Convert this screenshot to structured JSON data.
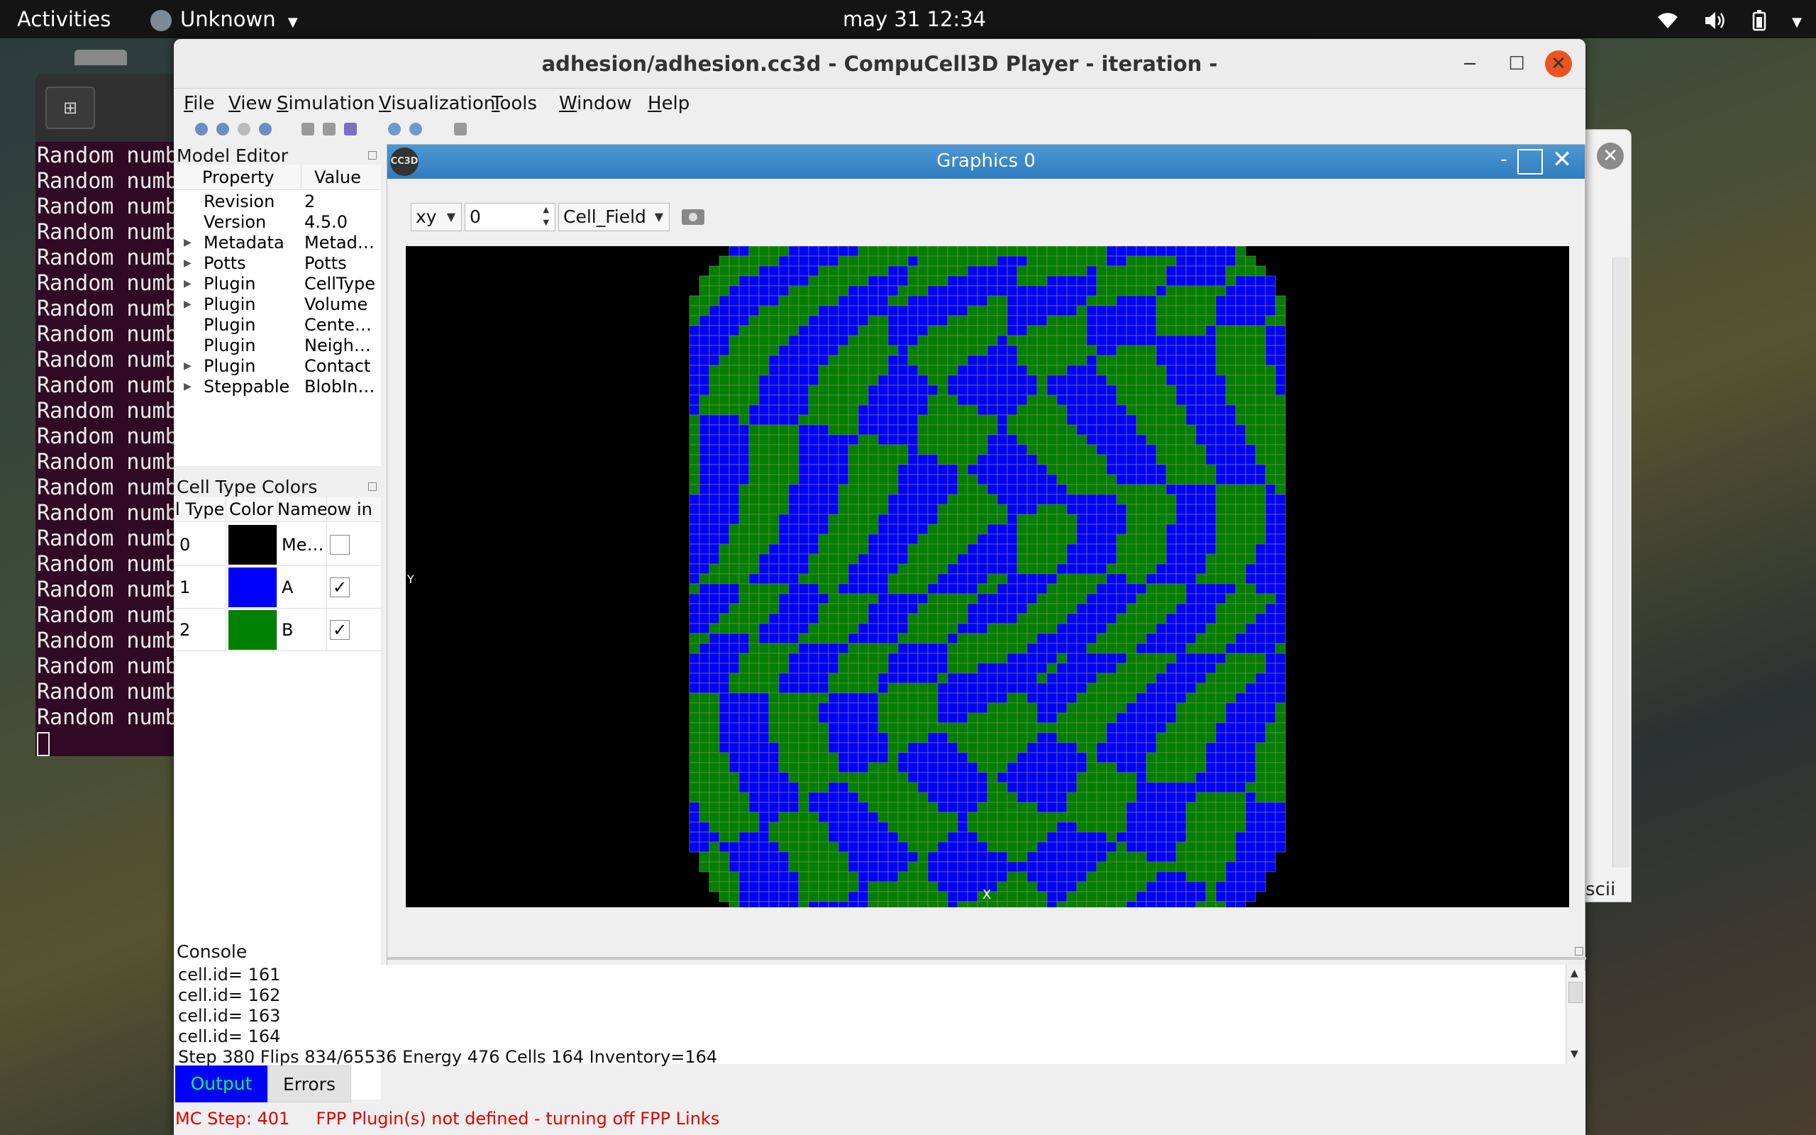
{
  "topbar": {
    "activities": "Activities",
    "app_menu": "Unknown",
    "clock": "may 31  12:34"
  },
  "terminal": {
    "line_text": "Random numb",
    "line_count": 23
  },
  "background_window": {
    "close_glyph": "✕",
    "bottom_text": "scii"
  },
  "window": {
    "title": "adhesion/adhesion.cc3d - CompuCell3D Player - iteration -",
    "menu": [
      "File",
      "View",
      "Simulation",
      "Visualization",
      "Tools",
      "Window",
      "Help"
    ],
    "menu_accel": [
      "F",
      "V",
      "S",
      "V",
      "T",
      "W",
      "H"
    ]
  },
  "model_editor": {
    "title": "Model Editor",
    "col_property": "Property",
    "col_value": "Value",
    "rows": [
      {
        "property": "Revision",
        "value": "2",
        "expandable": false
      },
      {
        "property": "Version",
        "value": "4.5.0",
        "expandable": false
      },
      {
        "property": "Metadata",
        "value": "Metad…",
        "expandable": true
      },
      {
        "property": "Potts",
        "value": "Potts",
        "expandable": true
      },
      {
        "property": "Plugin",
        "value": "CellType",
        "expandable": true
      },
      {
        "property": "Plugin",
        "value": "Volume",
        "expandable": true
      },
      {
        "property": "Plugin",
        "value": "Cente…",
        "expandable": false
      },
      {
        "property": "Plugin",
        "value": "Neigh…",
        "expandable": false
      },
      {
        "property": "Plugin",
        "value": "Contact",
        "expandable": true
      },
      {
        "property": "Steppable",
        "value": "BlobIn…",
        "expandable": true
      }
    ]
  },
  "cell_type_colors": {
    "title": "Cell Type Colors",
    "headers": [
      "l Type",
      "Color",
      "Name",
      "ow in"
    ],
    "rows": [
      {
        "type": "0",
        "color": "#000000",
        "name": "Me…",
        "shown": false
      },
      {
        "type": "1",
        "color": "#0000ff",
        "name": "A",
        "shown": true
      },
      {
        "type": "2",
        "color": "#008000",
        "name": "B",
        "shown": true
      }
    ]
  },
  "graphics": {
    "title": "Graphics 0",
    "plane": "xy",
    "slice": "0",
    "field": "Cell_Field",
    "axis_x": "X",
    "axis_y": "Y",
    "colors": {
      "medium": "#000000",
      "cell_a": "#0000ff",
      "cell_b": "#008000",
      "border": "#8c8c5a"
    }
  },
  "console": {
    "title": "Console",
    "lines": [
      "cell.id= 161",
      "cell.id= 162",
      "cell.id= 163",
      "cell.id= 164",
      "Step 380 Flips 834/65536 Energy 476 Cells 164 Inventory=164"
    ],
    "tab_output": "Output",
    "tab_errors": "Errors"
  },
  "status": {
    "mc_step": "MC Step: 401",
    "message": "FPP Plugin(s) not defined - turning off FPP Links"
  }
}
